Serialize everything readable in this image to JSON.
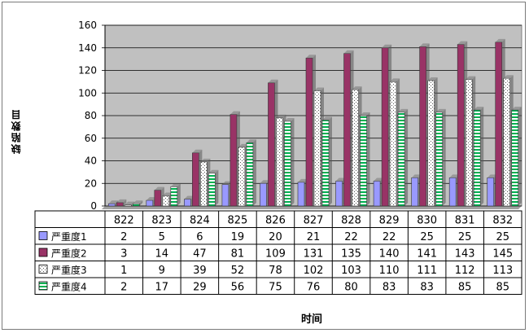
{
  "chart_data": {
    "type": "bar",
    "title": "",
    "xlabel": "时间",
    "ylabel": "缺陷数目",
    "ylim": [
      0,
      160
    ],
    "yticks": [
      0,
      20,
      40,
      60,
      80,
      100,
      120,
      140,
      160
    ],
    "grid": true,
    "legend": "table-bottom",
    "categories": [
      "822",
      "823",
      "824",
      "825",
      "826",
      "827",
      "828",
      "829",
      "830",
      "831",
      "832"
    ],
    "series": [
      {
        "name": "严重度1",
        "color": "#9999ff",
        "pattern": "solid",
        "values": [
          2,
          5,
          6,
          19,
          20,
          21,
          22,
          22,
          25,
          25,
          25
        ]
      },
      {
        "name": "严重度2",
        "color": "#993366",
        "pattern": "solid",
        "values": [
          3,
          14,
          47,
          81,
          109,
          131,
          135,
          140,
          141,
          143,
          145
        ]
      },
      {
        "name": "严重度3",
        "color": "#ffffcc",
        "pattern": "dots",
        "values": [
          1,
          9,
          39,
          52,
          78,
          102,
          103,
          110,
          111,
          112,
          113
        ]
      },
      {
        "name": "严重度4",
        "color": "#00b050",
        "pattern": "hstripes",
        "values": [
          2,
          17,
          29,
          56,
          75,
          76,
          80,
          83,
          83,
          85,
          85
        ]
      }
    ]
  }
}
